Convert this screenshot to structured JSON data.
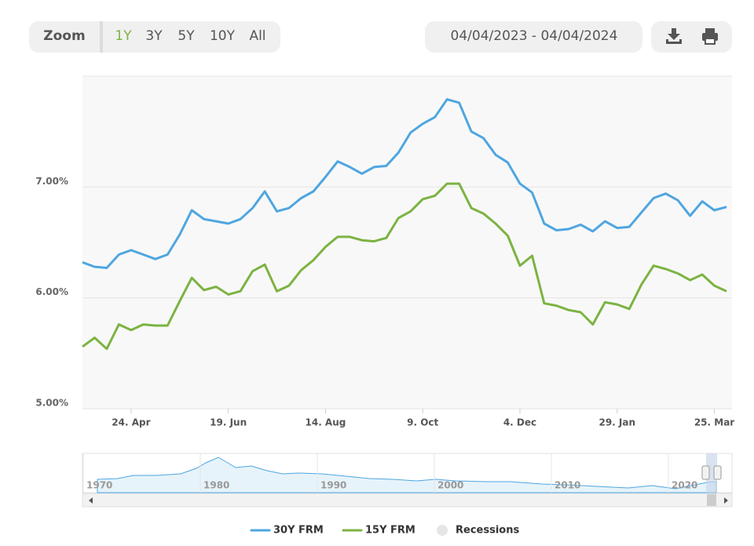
{
  "toolbar": {
    "zoom_label": "Zoom",
    "ranges": [
      "1Y",
      "3Y",
      "5Y",
      "10Y",
      "All"
    ],
    "selected": 0,
    "date_range": "04/04/2023 - 04/04/2024"
  },
  "chart_data": {
    "type": "line",
    "categories": [
      null,
      null,
      null,
      null,
      "24. Apr",
      null,
      null,
      null,
      null,
      null,
      null,
      null,
      "19. Jun",
      null,
      null,
      null,
      null,
      null,
      null,
      null,
      "14. Aug",
      null,
      null,
      null,
      null,
      null,
      null,
      null,
      "9. Oct",
      null,
      null,
      null,
      null,
      null,
      null,
      null,
      "4. Dec",
      null,
      null,
      null,
      null,
      null,
      null,
      null,
      "29. Jan",
      null,
      null,
      null,
      null,
      null,
      null,
      null,
      "25. Mar",
      null
    ],
    "series": [
      {
        "name": "30Y FRM",
        "color": "#4ea6e0",
        "values": [
          6.32,
          6.28,
          6.27,
          6.39,
          6.43,
          6.39,
          6.35,
          6.39,
          6.57,
          6.79,
          6.71,
          6.69,
          6.67,
          6.71,
          6.81,
          6.96,
          6.78,
          6.81,
          6.9,
          6.96,
          7.09,
          7.23,
          7.18,
          7.12,
          7.18,
          7.19,
          7.31,
          7.49,
          7.57,
          7.63,
          7.79,
          7.76,
          7.5,
          7.44,
          7.29,
          7.22,
          7.03,
          6.95,
          6.67,
          6.61,
          6.62,
          6.66,
          6.6,
          6.69,
          6.63,
          6.64,
          6.77,
          6.9,
          6.94,
          6.88,
          6.74,
          6.87,
          6.79,
          6.82
        ]
      },
      {
        "name": "15Y FRM",
        "color": "#7cb342",
        "values": [
          5.56,
          5.64,
          5.54,
          5.76,
          5.71,
          5.76,
          5.75,
          5.75,
          5.97,
          6.18,
          6.07,
          6.1,
          6.03,
          6.06,
          6.24,
          6.3,
          6.06,
          6.11,
          6.25,
          6.34,
          6.46,
          6.55,
          6.55,
          6.52,
          6.51,
          6.54,
          6.72,
          6.78,
          6.89,
          6.92,
          7.03,
          7.03,
          6.81,
          6.76,
          6.67,
          6.56,
          6.29,
          6.38,
          5.95,
          5.93,
          5.89,
          5.87,
          5.76,
          5.96,
          5.94,
          5.9,
          6.12,
          6.29,
          6.26,
          6.22,
          6.16,
          6.21,
          6.11,
          6.06
        ]
      }
    ],
    "recessions_label": "Recessions",
    "ylim": [
      5,
      8
    ],
    "yticks": [
      {
        "value": 5,
        "label": "5.00%"
      },
      {
        "value": 6,
        "label": "6.00%"
      },
      {
        "value": 7,
        "label": "7.00%"
      }
    ],
    "grid": true
  },
  "navigator": {
    "labels": [
      "1970",
      "1980",
      "1990",
      "2000",
      "2010",
      "2020"
    ]
  }
}
